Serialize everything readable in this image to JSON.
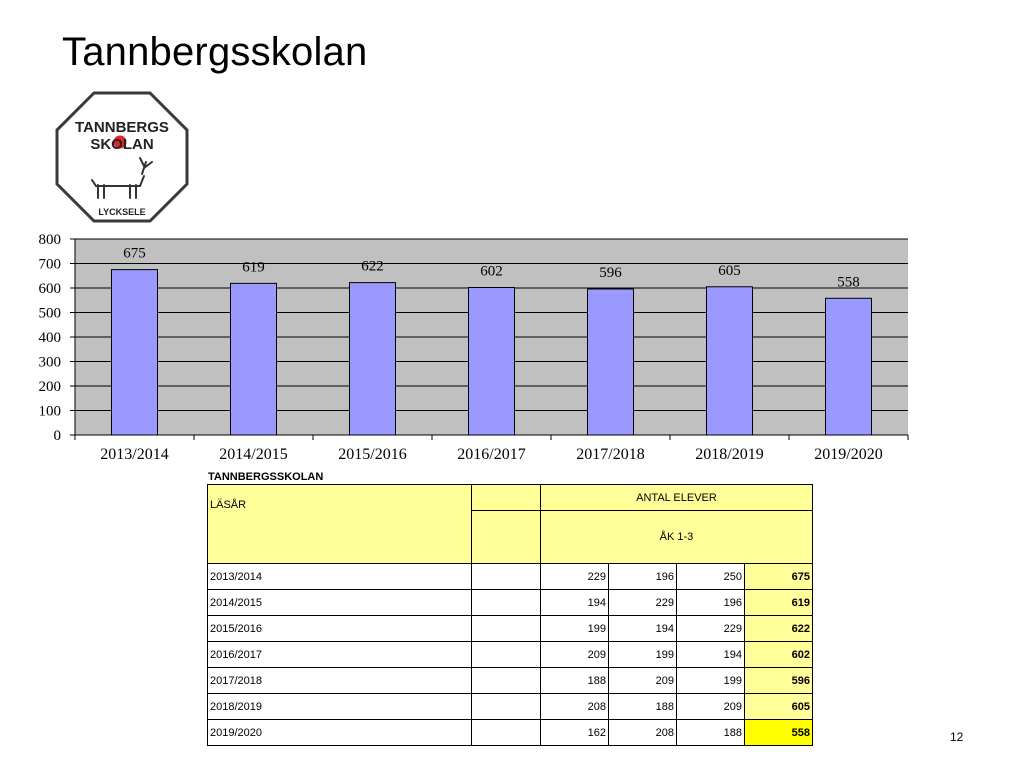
{
  "title": "Tannbergsskolan",
  "logo": {
    "line1": "TANNBERGS",
    "line2": "SKOLAN",
    "place": "LYCKSELE",
    "colors": {
      "red_dot": "#e0262b",
      "outline": "#333333"
    }
  },
  "chart_data": {
    "type": "bar",
    "categories": [
      "2013/2014",
      "2014/2015",
      "2015/2016",
      "2016/2017",
      "2017/2018",
      "2018/2019",
      "2019/2020"
    ],
    "series": [
      {
        "values": [
          675,
          619,
          622,
          602,
          596,
          605,
          558
        ]
      }
    ],
    "ylim": [
      0,
      800
    ],
    "yticks": [
      0,
      100,
      200,
      300,
      400,
      500,
      600,
      700,
      800
    ],
    "grid": true,
    "data_labels": true,
    "colors": {
      "bar": "#9999ff",
      "plot_bg": "#c0c0c0"
    }
  },
  "table": {
    "caption": "TANNBERGSSKOLAN",
    "header_lasar": "LÄSÅR",
    "header_antal": "ANTAL ELEVER",
    "header_ak": "ÅK 1-3",
    "rows": [
      {
        "year": "2013/2014",
        "a": "229",
        "b": "196",
        "c": "250",
        "total": "675"
      },
      {
        "year": "2014/2015",
        "a": "194",
        "b": "229",
        "c": "196",
        "total": "619"
      },
      {
        "year": "2015/2016",
        "a": "199",
        "b": "194",
        "c": "229",
        "total": "622"
      },
      {
        "year": "2016/2017",
        "a": "209",
        "b": "199",
        "c": "194",
        "total": "602"
      },
      {
        "year": "2017/2018",
        "a": "188",
        "b": "209",
        "c": "199",
        "total": "596"
      },
      {
        "year": "2018/2019",
        "a": "208",
        "b": "188",
        "c": "209",
        "total": "605"
      },
      {
        "year": "2019/2020",
        "a": "162",
        "b": "208",
        "c": "188",
        "total": "558"
      }
    ],
    "colors": {
      "header_fill": "#ffff99",
      "highlight_fill": "#ffff00"
    }
  },
  "page_number": "12"
}
